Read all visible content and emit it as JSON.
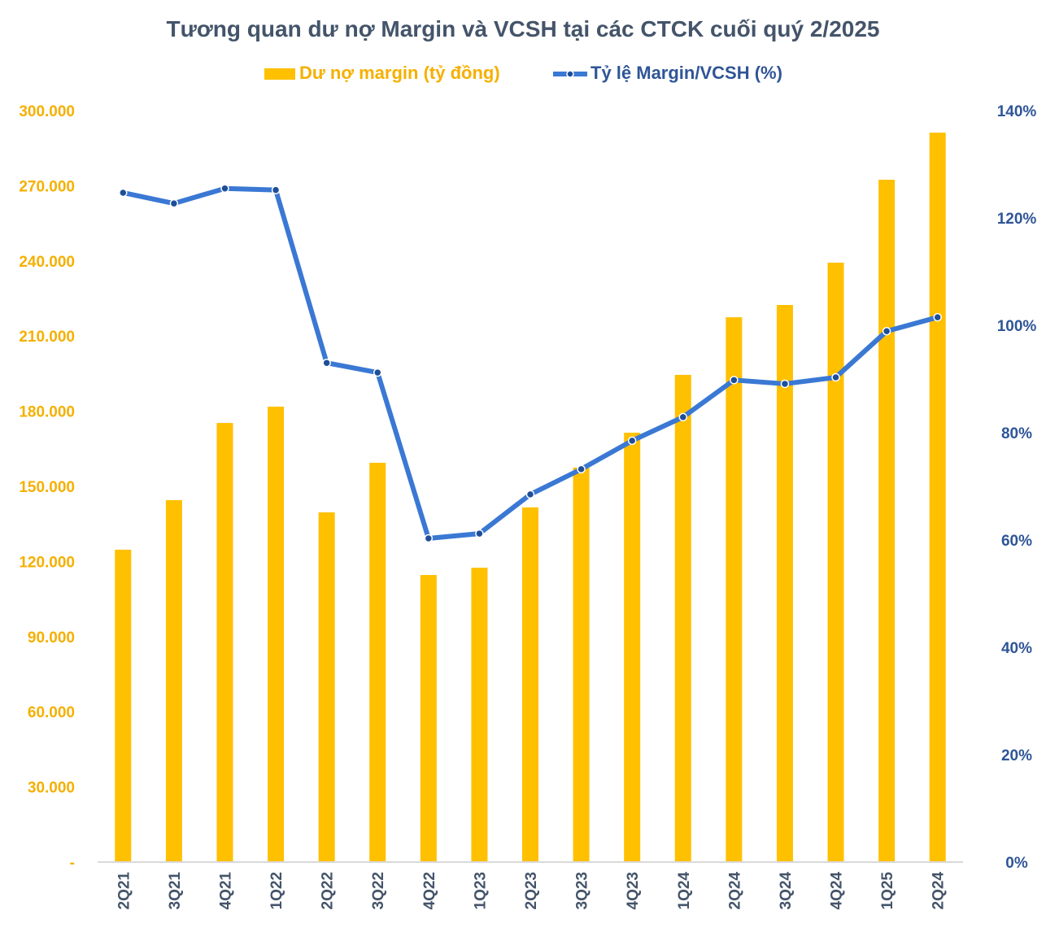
{
  "chart_data": {
    "type": "bar+line",
    "title": "Tương quan dư nợ Margin và VCSH tại các CTCK cuối quý 2/2025",
    "legend_placement": "top",
    "grid": false,
    "categories": [
      "2Q21",
      "3Q21",
      "4Q21",
      "1Q22",
      "2Q22",
      "3Q22",
      "4Q22",
      "1Q23",
      "2Q23",
      "3Q23",
      "4Q23",
      "1Q24",
      "2Q24",
      "3Q24",
      "4Q24",
      "1Q25",
      "2Q24"
    ],
    "series": [
      {
        "name": "Dư nợ margin (tỷ đồng)",
        "type": "bar",
        "axis": "left",
        "color": "#ffc000",
        "values": [
          124700,
          144500,
          175300,
          181800,
          139600,
          159400,
          114600,
          117500,
          141600,
          157500,
          171400,
          194500,
          217500,
          222400,
          239300,
          272400,
          291200
        ]
      },
      {
        "name": "Tỷ lệ Margin/VCSH (%)",
        "type": "line",
        "axis": "right",
        "color": "#3a78d4",
        "marker_color": "#1f4e99",
        "values": [
          124.7,
          122.7,
          125.5,
          125.2,
          93.0,
          91.2,
          60.3,
          61.2,
          68.5,
          73.2,
          78.5,
          82.9,
          89.8,
          89.1,
          90.3,
          98.9,
          101.5
        ]
      }
    ],
    "y_left": {
      "range": [
        0,
        300000
      ],
      "ticks": [
        "-",
        "30.000",
        "60.000",
        "90.000",
        "120.000",
        "150.000",
        "180.000",
        "210.000",
        "240.000",
        "270.000",
        "300.000"
      ]
    },
    "y_right": {
      "range": [
        0,
        140
      ],
      "ticks": [
        "0%",
        "20%",
        "40%",
        "60%",
        "80%",
        "100%",
        "120%",
        "140%"
      ]
    }
  }
}
